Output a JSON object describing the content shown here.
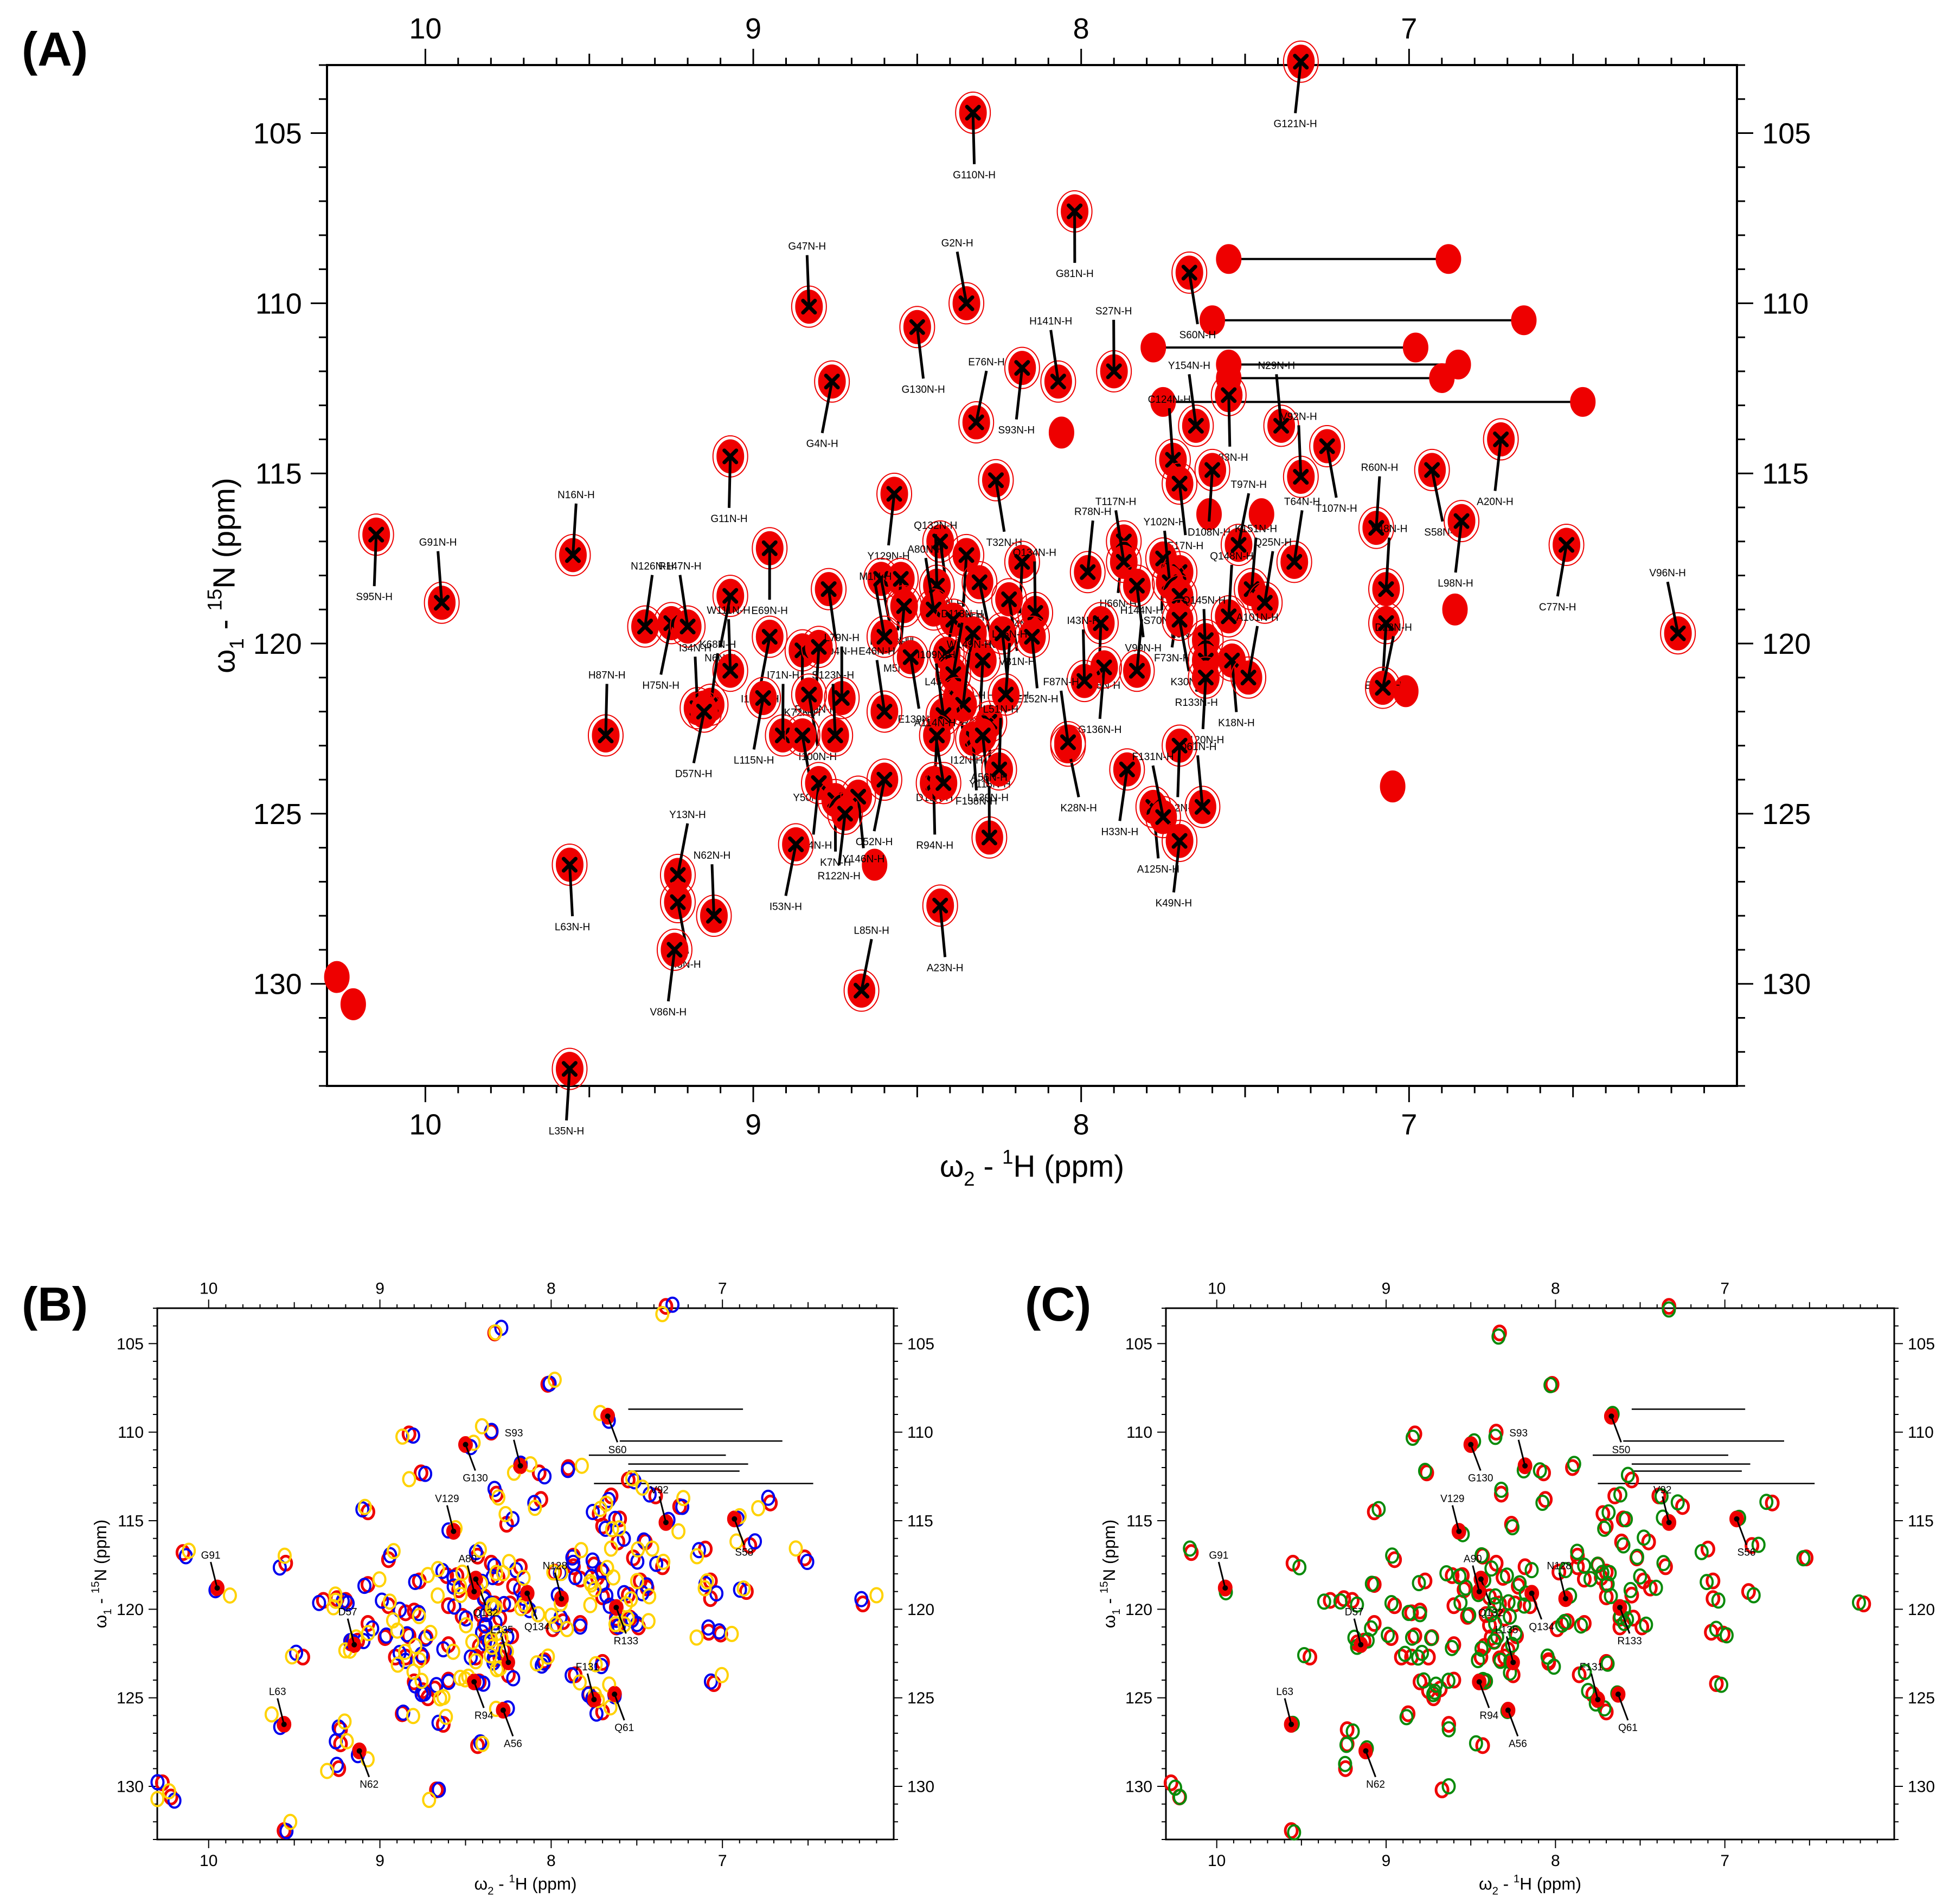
{
  "panels": [
    {
      "letter": "(A)",
      "xlabel_prefix": "ω",
      "xlabel_sub": "2",
      "xlabel_mid": " - ",
      "xlabel_sup": "1",
      "xlabel_rest": "H  (ppm)",
      "ylabel_prefix": "ω",
      "ylabel_sub": "1",
      "ylabel_mid": " - ",
      "ylabel_sup": "15",
      "ylabel_rest": "N  (ppm)"
    },
    {
      "letter": "(B)",
      "xlabel_prefix": "ω",
      "xlabel_sub": "2",
      "xlabel_mid": " - ",
      "xlabel_sup": "1",
      "xlabel_rest": "H  (ppm)",
      "ylabel_prefix": "ω",
      "ylabel_sub": "1",
      "ylabel_mid": " - ",
      "ylabel_sup": "15",
      "ylabel_rest": "N  (ppm)"
    },
    {
      "letter": "(C)",
      "xlabel_prefix": "ω",
      "xlabel_sub": "2",
      "xlabel_mid": " - ",
      "xlabel_sup": "1",
      "xlabel_rest": "H  (ppm)",
      "ylabel_prefix": "ω",
      "ylabel_sub": "1",
      "ylabel_mid": " - ",
      "ylabel_sup": "15",
      "ylabel_rest": "N  (ppm)"
    }
  ],
  "colors": {
    "red": "#ee0000",
    "blue": "#0000ee",
    "yellow": "#ffd200",
    "green": "#0a8a0a",
    "black": "#000000"
  },
  "chart_data": [
    {
      "type": "scatter",
      "panel": "A",
      "xlabel": "ω2 - 1H  (ppm)",
      "ylabel": "ω1 - 15N  (ppm)",
      "x_reversed": true,
      "y_reversed": true,
      "xlim": [
        10.3,
        6.0
      ],
      "ylim": [
        103.0,
        133.0
      ],
      "x_ticks": [
        10,
        9,
        8,
        7
      ],
      "y_ticks": [
        105,
        110,
        115,
        120,
        125,
        130
      ],
      "assigned_peaks": [
        {
          "label": "G110N-H",
          "x": 8.33,
          "y": 104.4
        },
        {
          "label": "G121N-H",
          "x": 7.33,
          "y": 102.9
        },
        {
          "label": "G81N-H",
          "x": 8.02,
          "y": 107.3
        },
        {
          "label": "S60N-H",
          "x": 7.67,
          "y": 109.1
        },
        {
          "label": "G47N-H",
          "x": 8.83,
          "y": 110.1
        },
        {
          "label": "G130N-H",
          "x": 8.5,
          "y": 110.7
        },
        {
          "label": "G2N-H",
          "x": 8.35,
          "y": 110.0
        },
        {
          "label": "S93N-H",
          "x": 8.18,
          "y": 111.9
        },
        {
          "label": "H141N-H",
          "x": 8.07,
          "y": 112.3
        },
        {
          "label": "S27N-H",
          "x": 7.9,
          "y": 112.0
        },
        {
          "label": "G4N-H",
          "x": 8.76,
          "y": 112.3
        },
        {
          "label": "E76N-H",
          "x": 8.32,
          "y": 113.5
        },
        {
          "label": "G11N-H",
          "x": 9.07,
          "y": 114.5
        },
        {
          "label": "Y154N-H",
          "x": 7.65,
          "y": 113.6
        },
        {
          "label": "S83N-H",
          "x": 7.55,
          "y": 112.7
        },
        {
          "label": "N29N-H",
          "x": 7.39,
          "y": 113.6
        },
        {
          "label": "S58N-H",
          "x": 6.93,
          "y": 114.9
        },
        {
          "label": "A20N-H",
          "x": 6.72,
          "y": 114.0
        },
        {
          "label": "C124N-H",
          "x": 7.72,
          "y": 114.6
        },
        {
          "label": "F17N-H",
          "x": 7.7,
          "y": 115.3
        },
        {
          "label": "D108N-H",
          "x": 7.6,
          "y": 114.9
        },
        {
          "label": "T107N-H",
          "x": 7.25,
          "y": 114.2
        },
        {
          "label": "T32N-H",
          "x": 8.26,
          "y": 115.2
        },
        {
          "label": "Y129N-H",
          "x": 8.57,
          "y": 115.6
        },
        {
          "label": "V92N-H",
          "x": 7.33,
          "y": 115.1
        },
        {
          "label": "R60N-H",
          "x": 7.1,
          "y": 116.6
        },
        {
          "label": "L98N-H",
          "x": 6.84,
          "y": 116.4
        },
        {
          "label": "C77N-H",
          "x": 6.52,
          "y": 117.1
        },
        {
          "label": "S95N-H",
          "x": 10.15,
          "y": 116.8
        },
        {
          "label": "N16N-H",
          "x": 9.55,
          "y": 117.4
        },
        {
          "label": "G91N-H",
          "x": 9.95,
          "y": 118.8
        },
        {
          "label": "E69N-H",
          "x": 8.95,
          "y": 117.2
        },
        {
          "label": "I74N-H",
          "x": 8.43,
          "y": 117.0
        },
        {
          "label": "S70N-H",
          "x": 7.75,
          "y": 117.5
        },
        {
          "label": "H66N-H",
          "x": 7.87,
          "y": 117.0
        },
        {
          "label": "T117N-H",
          "x": 7.87,
          "y": 117.6
        },
        {
          "label": "L9N-H",
          "x": 7.7,
          "y": 117.9
        },
        {
          "label": "T97N-H",
          "x": 7.52,
          "y": 117.1
        },
        {
          "label": "T64N-H",
          "x": 7.35,
          "y": 117.6
        },
        {
          "label": "V48N-H",
          "x": 7.07,
          "y": 118.4
        },
        {
          "label": "V96N-H",
          "x": 6.18,
          "y": 119.7
        },
        {
          "label": "E153N-H",
          "x": 8.35,
          "y": 117.4
        },
        {
          "label": "E24N-H",
          "x": 8.18,
          "y": 117.6
        },
        {
          "label": "R78N-H",
          "x": 7.98,
          "y": 117.9
        },
        {
          "label": "E142N-H",
          "x": 8.61,
          "y": 118.1
        },
        {
          "label": "I14N-H",
          "x": 8.55,
          "y": 118.1
        },
        {
          "label": "Q132N-H",
          "x": 8.44,
          "y": 118.3
        },
        {
          "label": "I26N-H",
          "x": 8.31,
          "y": 118.2
        },
        {
          "label": "V31N-H",
          "x": 8.22,
          "y": 118.7
        },
        {
          "label": "Q134N-H",
          "x": 8.14,
          "y": 119.1
        },
        {
          "label": "V99N-H",
          "x": 7.83,
          "y": 118.3
        },
        {
          "label": "Y102N-H",
          "x": 7.73,
          "y": 118.2
        },
        {
          "label": "F73N-H",
          "x": 7.7,
          "y": 118.6
        },
        {
          "label": "K151N-H",
          "x": 7.48,
          "y": 118.4
        },
        {
          "label": "Q25N-H",
          "x": 7.44,
          "y": 118.8
        },
        {
          "label": "M104N-H",
          "x": 8.77,
          "y": 118.4
        },
        {
          "label": "N6N-H",
          "x": 9.07,
          "y": 118.6
        },
        {
          "label": "H75N-H",
          "x": 9.25,
          "y": 119.4
        },
        {
          "label": "N126N-H",
          "x": 9.33,
          "y": 119.5
        },
        {
          "label": "R147N-H",
          "x": 9.2,
          "y": 119.5
        },
        {
          "label": "I103N-H",
          "x": 8.95,
          "y": 119.8
        },
        {
          "label": "K72N-H",
          "x": 8.85,
          "y": 120.2
        },
        {
          "label": "R119N-H",
          "x": 8.8,
          "y": 120.1
        },
        {
          "label": "M5N-H",
          "x": 8.54,
          "y": 118.9
        },
        {
          "label": "A80N-H",
          "x": 8.45,
          "y": 119.0
        },
        {
          "label": "L43N-H",
          "x": 8.39,
          "y": 119.3
        },
        {
          "label": "M1N-H",
          "x": 8.6,
          "y": 119.8
        },
        {
          "label": "E137N-H",
          "x": 8.33,
          "y": 119.7
        },
        {
          "label": "N128N-H",
          "x": 7.94,
          "y": 119.4
        },
        {
          "label": "H116N-H",
          "x": 8.24,
          "y": 119.7
        },
        {
          "label": "E152N-H",
          "x": 8.15,
          "y": 119.8
        },
        {
          "label": "K30N-H",
          "x": 7.7,
          "y": 119.3
        },
        {
          "label": "Q148N-H",
          "x": 7.55,
          "y": 119.2
        },
        {
          "label": "E82N-H",
          "x": 7.07,
          "y": 119.4
        },
        {
          "label": "E139N-H",
          "x": 8.52,
          "y": 120.4
        },
        {
          "label": "R133N-H",
          "x": 7.62,
          "y": 119.9
        },
        {
          "label": "G136N-H",
          "x": 7.93,
          "y": 120.7
        },
        {
          "label": "I50N-H",
          "x": 8.41,
          "y": 120.3
        },
        {
          "label": "R65N-H",
          "x": 8.3,
          "y": 120.5
        },
        {
          "label": "D113N-H",
          "x": 8.39,
          "y": 120.9
        },
        {
          "label": "W111N-H",
          "x": 9.07,
          "y": 120.8
        },
        {
          "label": "I100N-H",
          "x": 8.83,
          "y": 121.5
        },
        {
          "label": "L79N-H",
          "x": 8.73,
          "y": 121.6
        },
        {
          "label": "L45N-H",
          "x": 8.23,
          "y": 121.5
        },
        {
          "label": "I12N-H",
          "x": 8.38,
          "y": 121.6
        },
        {
          "label": "Q145N-H",
          "x": 7.62,
          "y": 120.5
        },
        {
          "label": "K18N-H",
          "x": 7.54,
          "y": 120.5
        },
        {
          "label": "A101N-H",
          "x": 7.49,
          "y": 121.0
        },
        {
          "label": "D22N-H",
          "x": 7.08,
          "y": 121.3
        },
        {
          "label": "K68N-H",
          "x": 9.13,
          "y": 121.8
        },
        {
          "label": "L115N-H",
          "x": 8.97,
          "y": 121.6
        },
        {
          "label": "H87N-H",
          "x": 9.45,
          "y": 122.7
        },
        {
          "label": "I34N-H",
          "x": 9.17,
          "y": 121.9
        },
        {
          "label": "W149N-H",
          "x": 8.36,
          "y": 121.8
        },
        {
          "label": "I43N-H",
          "x": 7.99,
          "y": 121.1
        },
        {
          "label": "H144N-H",
          "x": 7.83,
          "y": 120.8
        },
        {
          "label": "A120N-H",
          "x": 7.62,
          "y": 121.0
        },
        {
          "label": "K28N-H",
          "x": 8.04,
          "y": 123.0
        },
        {
          "label": "E46N-H",
          "x": 8.6,
          "y": 122.0
        },
        {
          "label": "I109N-H",
          "x": 8.42,
          "y": 122.1
        },
        {
          "label": "Y118N-H",
          "x": 8.28,
          "y": 122.3
        },
        {
          "label": "D57N-H",
          "x": 9.15,
          "y": 122.0
        },
        {
          "label": "I71N-H",
          "x": 8.91,
          "y": 122.7
        },
        {
          "label": "D19N-H",
          "x": 8.44,
          "y": 122.7
        },
        {
          "label": "F138N-H",
          "x": 8.33,
          "y": 122.8
        },
        {
          "label": "L139N-H",
          "x": 8.3,
          "y": 122.7
        },
        {
          "label": "Y50N-H",
          "x": 8.85,
          "y": 122.7
        },
        {
          "label": "S123N-H",
          "x": 8.75,
          "y": 122.7
        },
        {
          "label": "F87N-H",
          "x": 8.04,
          "y": 122.9
        },
        {
          "label": "E112N-H",
          "x": 7.7,
          "y": 123.0
        },
        {
          "label": "L51N-H",
          "x": 8.25,
          "y": 123.7
        },
        {
          "label": "H33N-H",
          "x": 7.86,
          "y": 123.7
        },
        {
          "label": "C84N-H",
          "x": 8.8,
          "y": 124.1
        },
        {
          "label": "K7N-H",
          "x": 8.75,
          "y": 124.6
        },
        {
          "label": "C52N-H",
          "x": 8.6,
          "y": 124.0
        },
        {
          "label": "Y146N-H",
          "x": 8.68,
          "y": 124.5
        },
        {
          "label": "R94N-H",
          "x": 8.45,
          "y": 124.1
        },
        {
          "label": "A114N-H",
          "x": 8.42,
          "y": 124.1
        },
        {
          "label": "R122N-H",
          "x": 8.72,
          "y": 125.0
        },
        {
          "label": "I53N-H",
          "x": 8.87,
          "y": 125.9
        },
        {
          "label": "A125N-H",
          "x": 7.78,
          "y": 124.8
        },
        {
          "label": "F131N-H",
          "x": 7.75,
          "y": 125.1
        },
        {
          "label": "Q61N-H",
          "x": 7.63,
          "y": 124.8
        },
        {
          "label": "K49N-H",
          "x": 7.7,
          "y": 125.8
        },
        {
          "label": "A56N-H",
          "x": 8.28,
          "y": 125.7
        },
        {
          "label": "L63N-H",
          "x": 9.56,
          "y": 126.5
        },
        {
          "label": "Y13N-H",
          "x": 9.23,
          "y": 126.8
        },
        {
          "label": "I8N-H",
          "x": 9.23,
          "y": 127.6
        },
        {
          "label": "N62N-H",
          "x": 9.12,
          "y": 128.0
        },
        {
          "label": "V86N-H",
          "x": 9.24,
          "y": 129.0
        },
        {
          "label": "A23N-H",
          "x": 8.43,
          "y": 127.7
        },
        {
          "label": "L85N-H",
          "x": 8.67,
          "y": 130.2
        },
        {
          "label": "L35N-H",
          "x": 9.56,
          "y": 132.5
        }
      ],
      "side_chain_pairs": [
        {
          "y": 108.7,
          "x1": 7.55,
          "x2": 6.88
        },
        {
          "y": 110.5,
          "x1": 7.6,
          "x2": 6.65
        },
        {
          "y": 111.3,
          "x1": 7.78,
          "x2": 6.98
        },
        {
          "y": 111.8,
          "x1": 7.55,
          "x2": 6.85
        },
        {
          "y": 112.2,
          "x1": 7.55,
          "x2": 6.9
        },
        {
          "y": 112.9,
          "x1": 7.75,
          "x2": 6.47
        }
      ],
      "unassigned_peaks": [
        {
          "x": 10.27,
          "y": 129.8
        },
        {
          "x": 10.22,
          "y": 130.6
        },
        {
          "x": 8.06,
          "y": 113.8
        },
        {
          "x": 8.63,
          "y": 126.5
        },
        {
          "x": 7.05,
          "y": 124.2
        },
        {
          "x": 6.86,
          "y": 119.0
        },
        {
          "x": 7.01,
          "y": 121.4
        },
        {
          "x": 7.61,
          "y": 116.2
        },
        {
          "x": 7.45,
          "y": 116.2
        }
      ]
    },
    {
      "type": "scatter",
      "panel": "B",
      "xlabel": "ω2 - 1H  (ppm)",
      "ylabel": "ω1 - 15N  (ppm)",
      "x_reversed": true,
      "y_reversed": true,
      "xlim": [
        10.3,
        6.0
      ],
      "ylim": [
        103.0,
        133.0
      ],
      "x_ticks": [
        10,
        9,
        8,
        7
      ],
      "y_ticks": [
        105,
        110,
        115,
        120,
        125,
        130
      ],
      "highlighted_labels": [
        {
          "label": "G91",
          "x": 9.95,
          "y": 118.8
        },
        {
          "label": "G130",
          "x": 8.5,
          "y": 110.7
        },
        {
          "label": "S93",
          "x": 8.18,
          "y": 111.9
        },
        {
          "label": "S60",
          "x": 7.67,
          "y": 109.1
        },
        {
          "label": "V129",
          "x": 8.57,
          "y": 115.6
        },
        {
          "label": "S58",
          "x": 6.93,
          "y": 114.9
        },
        {
          "label": "V92",
          "x": 7.33,
          "y": 115.1
        },
        {
          "label": "Q132",
          "x": 8.44,
          "y": 118.3
        },
        {
          "label": "A80",
          "x": 8.45,
          "y": 119.0
        },
        {
          "label": "Q134",
          "x": 8.14,
          "y": 119.1
        },
        {
          "label": "N128",
          "x": 7.94,
          "y": 119.4
        },
        {
          "label": "R133",
          "x": 7.62,
          "y": 119.9
        },
        {
          "label": "D57",
          "x": 9.15,
          "y": 122.0
        },
        {
          "label": "R94",
          "x": 8.45,
          "y": 124.1
        },
        {
          "label": "L135",
          "x": 8.25,
          "y": 123.0
        },
        {
          "label": "A56",
          "x": 8.28,
          "y": 125.7
        },
        {
          "label": "F131",
          "x": 7.75,
          "y": 125.1
        },
        {
          "label": "Q61",
          "x": 7.63,
          "y": 124.8
        },
        {
          "label": "L63",
          "x": 9.56,
          "y": 126.5
        },
        {
          "label": "N62",
          "x": 9.12,
          "y": 128.0
        }
      ],
      "series_colors": [
        "red",
        "blue",
        "yellow"
      ]
    },
    {
      "type": "scatter",
      "panel": "C",
      "xlabel": "ω2 - 1H  (ppm)",
      "ylabel": "ω1 - 15N  (ppm)",
      "x_reversed": true,
      "y_reversed": true,
      "xlim": [
        10.3,
        6.0
      ],
      "ylim": [
        103.0,
        133.0
      ],
      "x_ticks": [
        10,
        9,
        8,
        7
      ],
      "y_ticks": [
        105,
        110,
        115,
        120,
        125,
        130
      ],
      "highlighted_labels": [
        {
          "label": "G91",
          "x": 9.95,
          "y": 118.8
        },
        {
          "label": "G130",
          "x": 8.5,
          "y": 110.7
        },
        {
          "label": "S93",
          "x": 8.18,
          "y": 111.9
        },
        {
          "label": "S50",
          "x": 7.67,
          "y": 109.1
        },
        {
          "label": "V129",
          "x": 8.57,
          "y": 115.6
        },
        {
          "label": "S56",
          "x": 6.93,
          "y": 114.9
        },
        {
          "label": "V92",
          "x": 7.33,
          "y": 115.1
        },
        {
          "label": "Q132",
          "x": 8.44,
          "y": 118.3
        },
        {
          "label": "A90",
          "x": 8.45,
          "y": 119.0
        },
        {
          "label": "Q134",
          "x": 8.14,
          "y": 119.1
        },
        {
          "label": "N128",
          "x": 7.94,
          "y": 119.4
        },
        {
          "label": "R133",
          "x": 7.62,
          "y": 119.9
        },
        {
          "label": "D57",
          "x": 9.15,
          "y": 122.0
        },
        {
          "label": "R94",
          "x": 8.45,
          "y": 124.1
        },
        {
          "label": "L135",
          "x": 8.25,
          "y": 123.0
        },
        {
          "label": "A56",
          "x": 8.28,
          "y": 125.7
        },
        {
          "label": "F131",
          "x": 7.75,
          "y": 125.1
        },
        {
          "label": "Q61",
          "x": 7.63,
          "y": 124.8
        },
        {
          "label": "L63",
          "x": 9.56,
          "y": 126.5
        },
        {
          "label": "N62",
          "x": 9.12,
          "y": 128.0
        }
      ],
      "series_colors": [
        "red",
        "green"
      ]
    }
  ]
}
